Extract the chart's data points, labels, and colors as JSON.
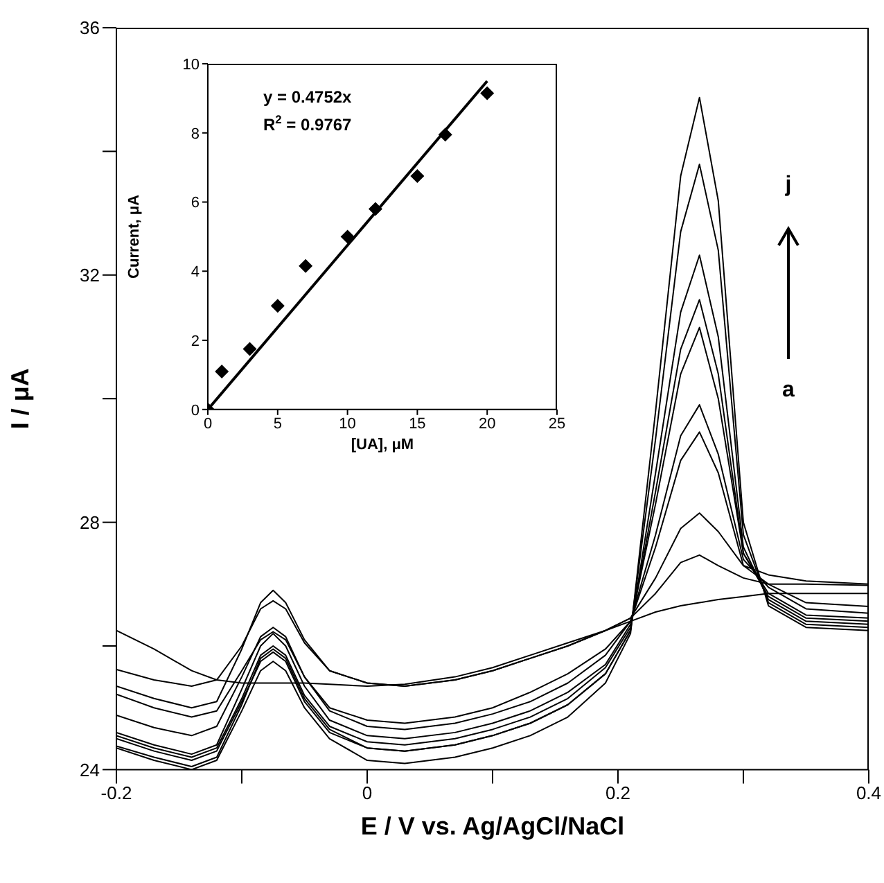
{
  "chart_data": [
    {
      "type": "line",
      "xlabel": "E / V vs. Ag/AgCl/NaCl",
      "ylabel": "I / μA",
      "xlim": [
        -0.2,
        0.4
      ],
      "xticks": [
        -0.2,
        {
          "value": -0.1,
          "label": null
        },
        0,
        {
          "value": 0.1,
          "label": null
        },
        0.2,
        {
          "value": 0.3,
          "label": null
        },
        0.4
      ],
      "ylim": [
        24,
        36
      ],
      "yticks": [
        24,
        {
          "value": 26,
          "label": null
        },
        28,
        {
          "value": 30,
          "label": null
        },
        32,
        {
          "value": 34,
          "label": null
        },
        36
      ],
      "marker": "none",
      "annotations": [
        "j",
        "a"
      ],
      "x": [
        -0.2,
        -0.17,
        -0.14,
        -0.12,
        -0.1,
        -0.085,
        -0.075,
        -0.065,
        -0.05,
        -0.03,
        0,
        0.03,
        0.07,
        0.1,
        0.13,
        0.16,
        0.19,
        0.21,
        0.23,
        0.25,
        0.265,
        0.28,
        0.3,
        0.32,
        0.35,
        0.4
      ],
      "series": [
        {
          "color": "#000000",
          "values": [
            26.25,
            25.95,
            25.6,
            25.45,
            25.4,
            25.4,
            25.4,
            25.4,
            25.4,
            25.38,
            25.35,
            25.38,
            25.5,
            25.65,
            25.85,
            26.05,
            26.25,
            26.4,
            26.55,
            26.65,
            26.7,
            26.75,
            26.8,
            26.85,
            26.85,
            26.85
          ]
        },
        {
          "color": "#000000",
          "values": [
            25.62,
            25.45,
            25.35,
            25.45,
            26.0,
            26.6,
            26.73,
            26.6,
            26.05,
            25.6,
            25.4,
            25.35,
            25.45,
            25.6,
            25.8,
            26.0,
            26.25,
            26.45,
            26.85,
            27.35,
            27.47,
            27.3,
            27.1,
            27.0,
            27.0,
            26.98
          ]
        },
        {
          "color": "#000000",
          "values": [
            25.35,
            25.15,
            25.0,
            25.1,
            25.95,
            26.7,
            26.9,
            26.7,
            26.1,
            25.6,
            25.4,
            25.35,
            25.45,
            25.6,
            25.8,
            26.0,
            26.25,
            26.45,
            27.1,
            27.9,
            28.15,
            27.85,
            27.3,
            27.15,
            27.05,
            27.0
          ]
        },
        {
          "color": "#000000",
          "values": [
            25.22,
            25.0,
            24.85,
            24.95,
            25.6,
            26.1,
            26.23,
            26.1,
            25.5,
            25.0,
            24.8,
            24.75,
            24.85,
            25.0,
            25.25,
            25.55,
            25.95,
            26.4,
            27.6,
            29.0,
            29.46,
            28.8,
            27.3,
            27.0,
            26.7,
            26.64
          ]
        },
        {
          "color": "#000000",
          "values": [
            24.88,
            24.68,
            24.55,
            24.7,
            25.5,
            26.15,
            26.3,
            26.15,
            25.5,
            24.95,
            24.7,
            24.65,
            24.75,
            24.9,
            25.1,
            25.4,
            25.85,
            26.4,
            27.8,
            29.4,
            29.9,
            29.1,
            27.4,
            26.95,
            26.6,
            26.53
          ]
        },
        {
          "color": "#000000",
          "values": [
            24.6,
            24.4,
            24.25,
            24.4,
            25.3,
            26.0,
            26.2,
            26.0,
            25.35,
            24.8,
            24.55,
            24.5,
            24.6,
            24.75,
            24.95,
            25.25,
            25.7,
            26.35,
            28.3,
            30.4,
            31.15,
            30.0,
            27.5,
            26.85,
            26.5,
            26.45
          ]
        },
        {
          "color": "#000000",
          "values": [
            24.55,
            24.35,
            24.2,
            24.35,
            25.15,
            25.85,
            26.0,
            25.85,
            25.2,
            24.7,
            24.45,
            24.4,
            24.5,
            24.65,
            24.85,
            25.15,
            25.65,
            26.3,
            28.5,
            30.8,
            31.6,
            30.4,
            27.5,
            26.8,
            26.45,
            26.4
          ]
        },
        {
          "color": "#000000",
          "values": [
            24.5,
            24.3,
            24.15,
            24.3,
            25.1,
            25.75,
            25.9,
            25.75,
            25.1,
            24.6,
            24.35,
            24.3,
            24.4,
            24.55,
            24.75,
            25.05,
            25.55,
            26.25,
            28.8,
            31.4,
            32.32,
            31.0,
            27.6,
            26.75,
            26.4,
            26.35
          ]
        },
        {
          "color": "#000000",
          "values": [
            24.38,
            24.2,
            24.05,
            24.2,
            25.05,
            25.8,
            25.95,
            25.8,
            25.15,
            24.65,
            24.35,
            24.3,
            24.4,
            24.55,
            24.75,
            25.05,
            25.55,
            26.25,
            29.35,
            32.7,
            33.79,
            32.4,
            27.8,
            26.7,
            26.35,
            26.3
          ]
        },
        {
          "color": "#000000",
          "values": [
            24.35,
            24.15,
            24.0,
            24.15,
            24.95,
            25.6,
            25.75,
            25.6,
            25.0,
            24.5,
            24.15,
            24.1,
            24.2,
            24.35,
            24.55,
            24.85,
            25.4,
            26.2,
            29.8,
            33.6,
            34.87,
            33.2,
            28.0,
            26.65,
            26.3,
            26.25
          ]
        }
      ]
    },
    {
      "type": "scatter",
      "xlabel": "[UA], μM",
      "ylabel": "Current, μA",
      "xlim": [
        0,
        25
      ],
      "xticks": [
        0,
        5,
        10,
        15,
        20,
        25
      ],
      "ylim": [
        0,
        10
      ],
      "yticks": [
        0,
        2,
        4,
        6,
        8,
        10
      ],
      "annotations": [
        "y = 0.4752x",
        "R$^{2}$ = 0.9767"
      ],
      "series": [
        {
          "marker": "diamond",
          "color": "#000000",
          "x": [
            0,
            1,
            3,
            5,
            7,
            10,
            12,
            15,
            17,
            20
          ],
          "values": [
            0,
            1.1,
            1.75,
            3.0,
            4.15,
            5.0,
            5.8,
            6.75,
            7.95,
            9.15
          ]
        },
        {
          "type": "line",
          "color": "#000000",
          "x": [
            0,
            20
          ],
          "values": [
            0,
            9.5
          ]
        }
      ]
    }
  ]
}
